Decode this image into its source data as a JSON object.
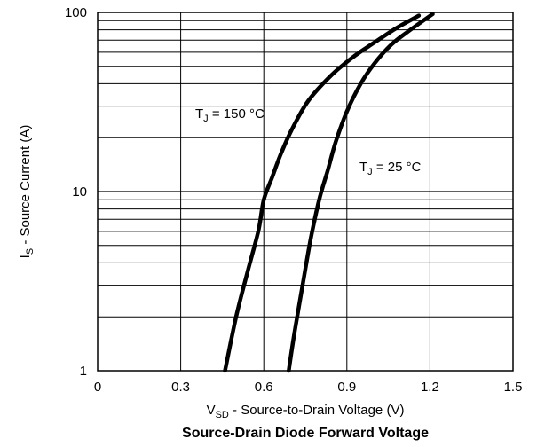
{
  "chart_data": {
    "type": "line",
    "title": "Source-Drain Diode Forward Voltage",
    "xlabel": {
      "main": "V",
      "sub": "SD",
      "rest": " - Source-to-Drain Voltage (V)"
    },
    "ylabel": {
      "main": "I",
      "sub": "S",
      "rest": " - Source Current (A)"
    },
    "x_axis": {
      "min": 0,
      "max": 1.5,
      "ticks": [
        0,
        0.3,
        0.6,
        0.9,
        1.2,
        1.5
      ],
      "tick_labels": [
        "0",
        "0.3",
        "0.6",
        "0.9",
        "1.2",
        "1.5"
      ]
    },
    "y_axis": {
      "scale": "log",
      "min": 1,
      "max": 100,
      "ticks": [
        1,
        10,
        100
      ],
      "tick_labels": [
        "1",
        "10",
        "100"
      ]
    },
    "grid": true,
    "series": [
      {
        "name": "TJ = 150 °C",
        "label": {
          "main": "T",
          "sub": "J",
          "rest": " = 150 °C"
        },
        "x": [
          0.46,
          0.5,
          0.54,
          0.58,
          0.6,
          0.63,
          0.66,
          0.7,
          0.76,
          0.84,
          0.92,
          1.0,
          1.08,
          1.16
        ],
        "y": [
          1.0,
          2.0,
          3.5,
          6.0,
          9.0,
          12.0,
          16.0,
          22.0,
          32.0,
          44.0,
          56.0,
          68.0,
          82.0,
          96.0
        ],
        "color": "#000000"
      },
      {
        "name": "TJ = 25 °C",
        "label": {
          "main": "T",
          "sub": "J",
          "rest": " = 25 °C"
        },
        "x": [
          0.69,
          0.71,
          0.74,
          0.77,
          0.8,
          0.83,
          0.86,
          0.9,
          0.95,
          1.0,
          1.06,
          1.12,
          1.21
        ],
        "y": [
          1.0,
          1.6,
          3.0,
          5.5,
          9.0,
          13.0,
          19.0,
          28.0,
          40.0,
          52.0,
          66.0,
          78.0,
          98.0
        ],
        "color": "#000000"
      }
    ]
  }
}
